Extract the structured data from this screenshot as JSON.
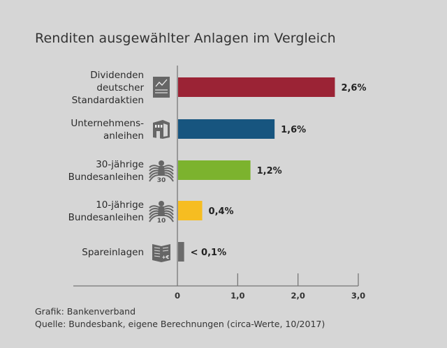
{
  "chart_data": {
    "type": "bar",
    "orientation": "horizontal",
    "title": "Renditen ausgewählter Anlagen im Vergleich",
    "categories": [
      [
        "Dividenden",
        "deutscher",
        "Standardaktien"
      ],
      [
        "Unternehmens-",
        "anleihen"
      ],
      [
        "30-jährige",
        "Bundesanleihen"
      ],
      [
        "10-jährige",
        "Bundesanleihen"
      ],
      [
        "Spareinlagen"
      ]
    ],
    "values": [
      2.6,
      1.6,
      1.2,
      0.4,
      0.1
    ],
    "value_labels": [
      "2,6%",
      "1,6%",
      "1,2%",
      "0,4%",
      "< 0,1%"
    ],
    "colors": [
      "#9b2335",
      "#17557f",
      "#7cb32e",
      "#f6bd21",
      "#6b6b6b"
    ],
    "icons": [
      "stock-chart-icon",
      "building-icon",
      "federal-eagle-30-icon",
      "federal-eagle-10-icon",
      "savings-book-icon"
    ],
    "icon_texts": [
      "",
      "",
      "30",
      "10",
      "+€"
    ],
    "xlim": [
      0,
      3.0
    ],
    "xticks": [
      0,
      1.0,
      2.0,
      3.0
    ],
    "xtick_labels": [
      "0",
      "1,0",
      "2,0",
      "3,0"
    ],
    "xlabel": "",
    "ylabel": "",
    "unit": "%",
    "grid": false,
    "legend": "none"
  },
  "footer": {
    "credit": "Grafik: Bankenverband",
    "source": "Quelle: Bundesbank, eigene Berechnungen (circa-Werte, 10/2017)"
  }
}
